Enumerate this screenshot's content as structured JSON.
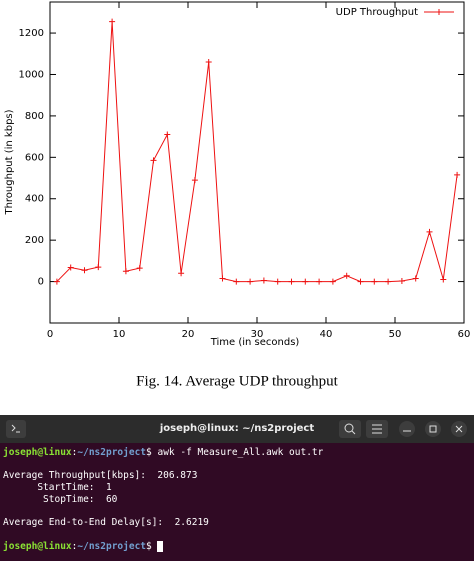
{
  "chart_data": {
    "type": "line",
    "legend_position": "upper right",
    "x_label": "Time (in seconds)",
    "y_label": "Throughput (in kbps)",
    "x": [
      1,
      3,
      5,
      7,
      9,
      11,
      13,
      15,
      17,
      19,
      21,
      23,
      25,
      27,
      29,
      31,
      33,
      35,
      37,
      39,
      41,
      43,
      45,
      47,
      49,
      51,
      53,
      55,
      57,
      59
    ],
    "series": [
      {
        "name": "UDP Throughput",
        "color": "#ee1111",
        "values": [
          0,
          68,
          55,
          70,
          1255,
          50,
          65,
          585,
          710,
          40,
          490,
          1060,
          15,
          0,
          0,
          5,
          0,
          0,
          0,
          0,
          0,
          28,
          0,
          0,
          0,
          3,
          15,
          240,
          10,
          515
        ]
      }
    ],
    "xlim": [
      0,
      60
    ],
    "xticks": [
      0,
      10,
      20,
      30,
      40,
      50,
      60
    ],
    "ylim": [
      -200,
      1350
    ],
    "yticks": [
      0,
      200,
      400,
      600,
      800,
      1000,
      1200
    ],
    "grid": false
  },
  "caption": "Fig. 14. Average UDP throughput",
  "terminal": {
    "title": "joseph@linux: ~/ns2project",
    "prompt_user": "joseph@linux",
    "prompt_separator": ":",
    "prompt_path": "~/ns2project",
    "prompt_symbol": "$",
    "command": "awk -f Measure_All.awk out.tr",
    "output": [
      "Average Throughput[kbps]:  206.873",
      "      StartTime:  1",
      "       StopTime:  60",
      "Average End-to-End Delay[s]:  2.6219"
    ]
  }
}
